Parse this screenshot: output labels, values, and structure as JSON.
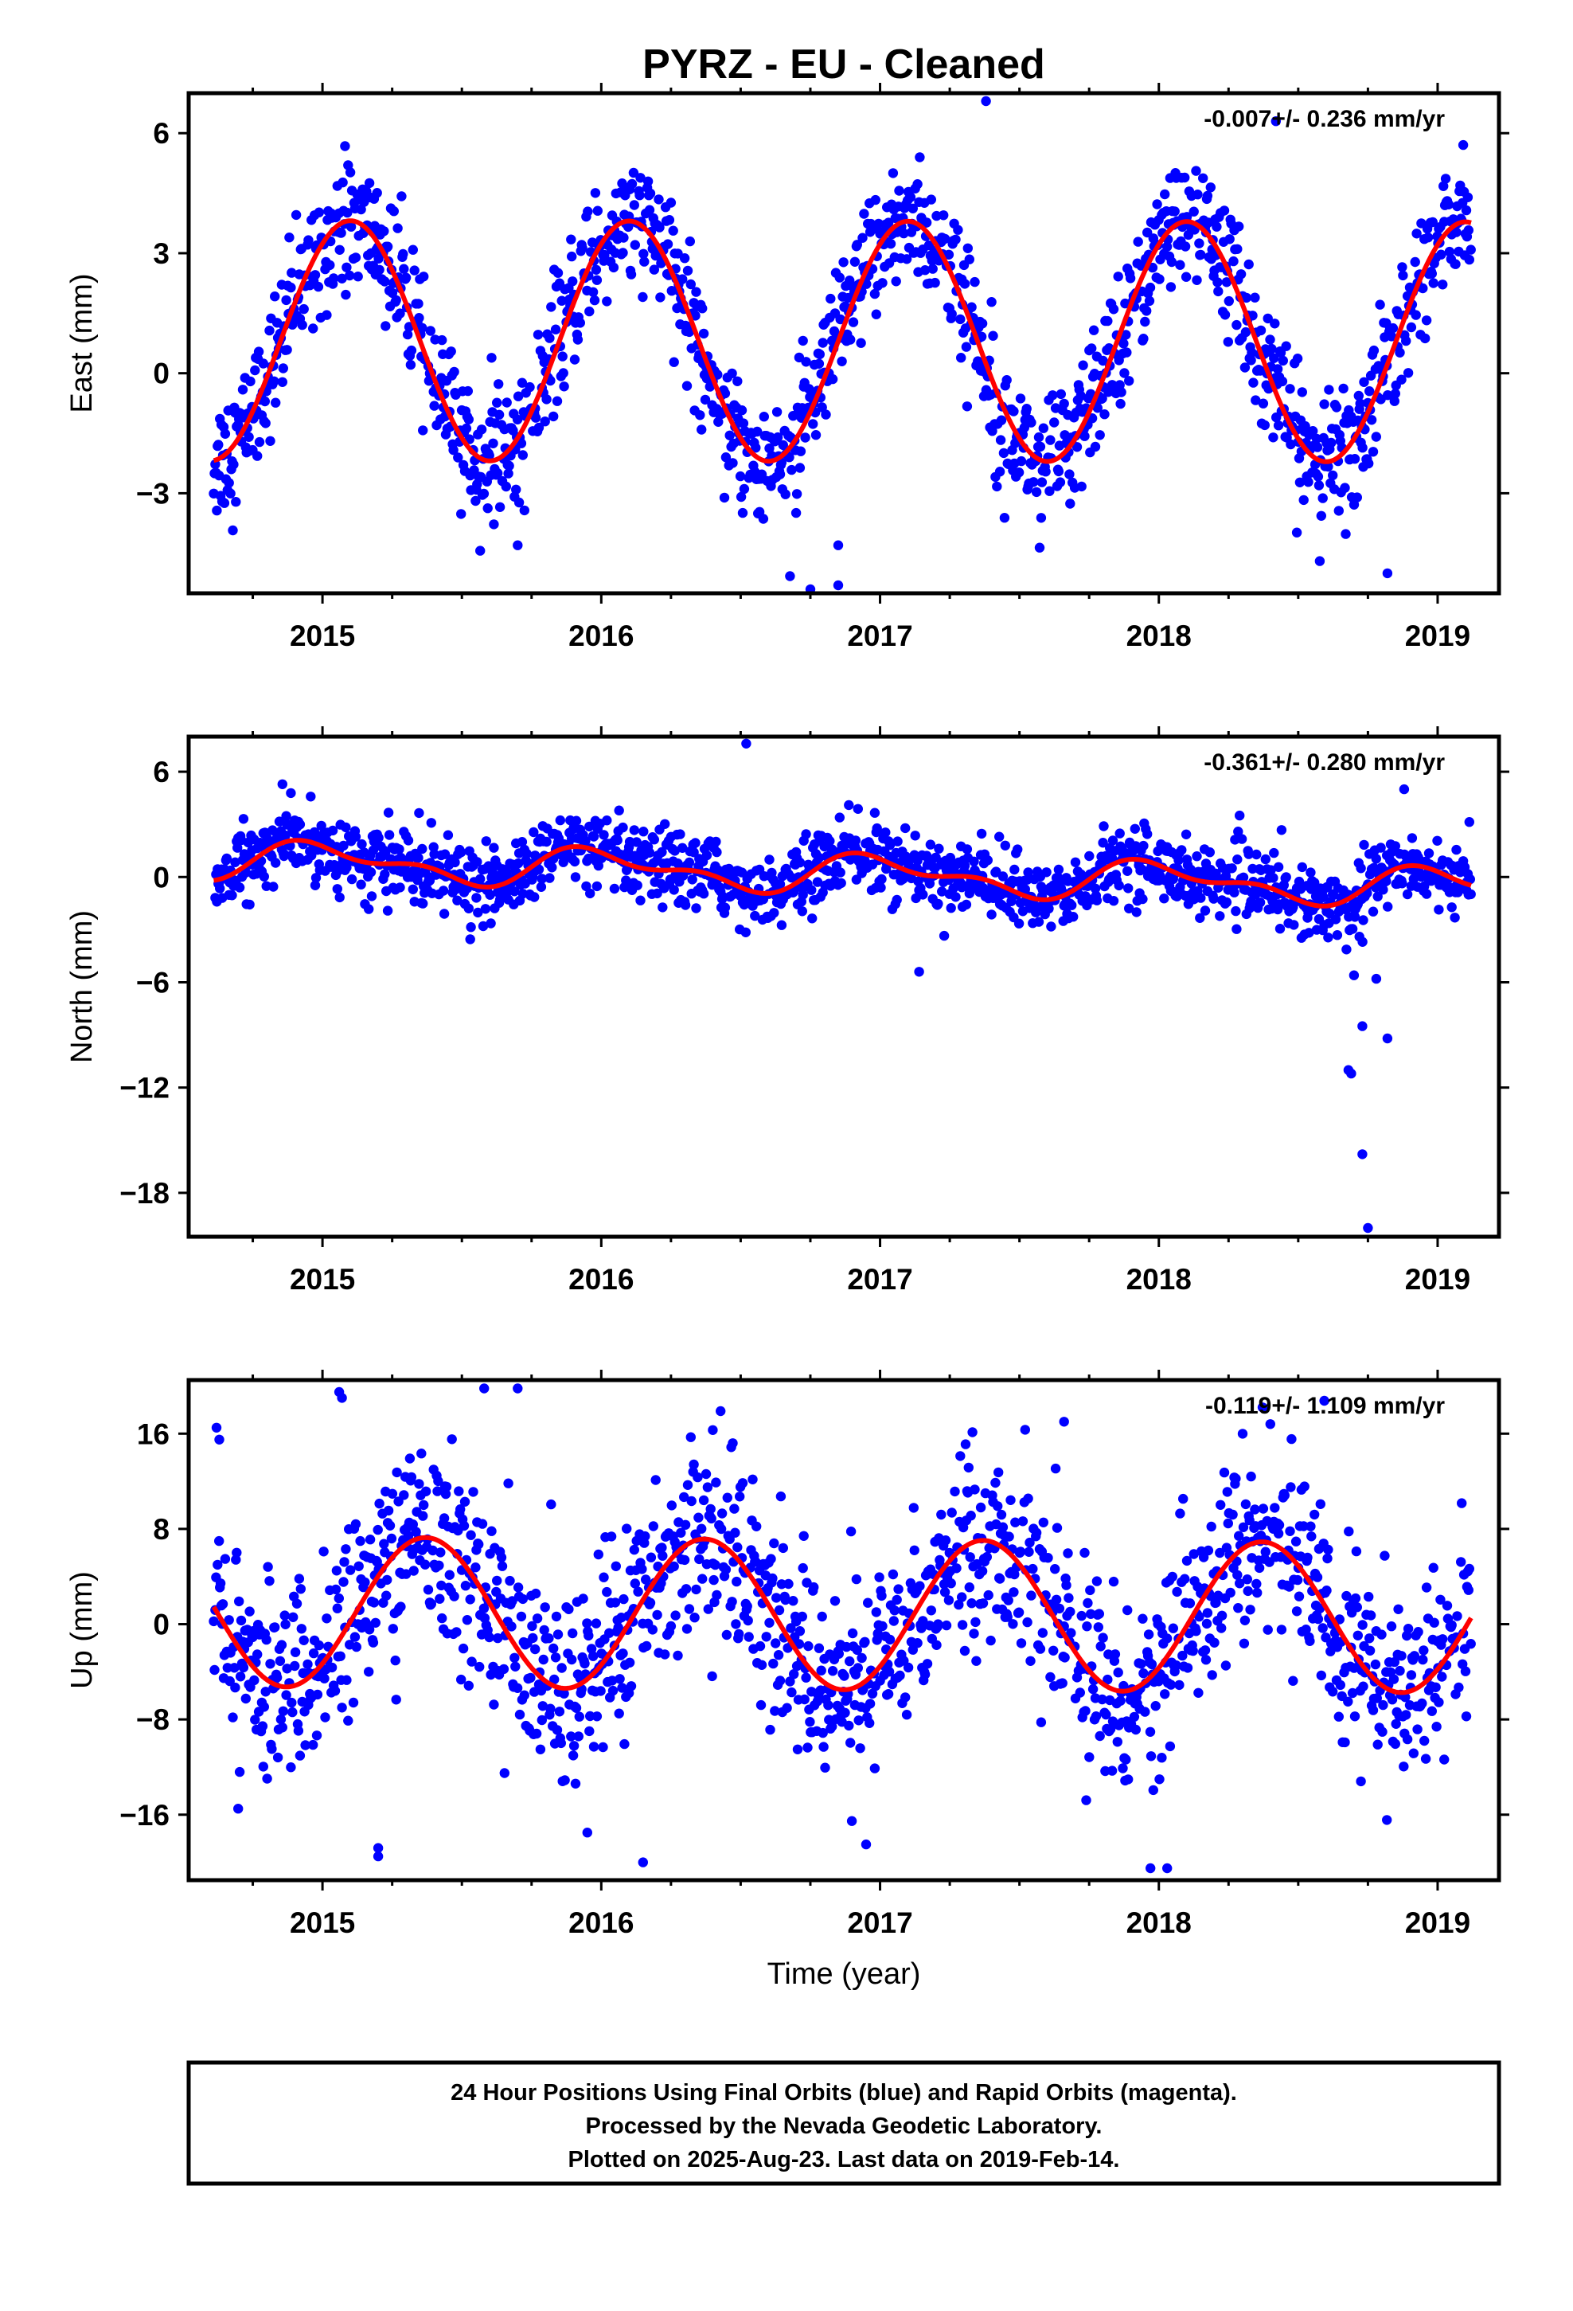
{
  "title": "PYRZ  - EU - Cleaned",
  "xlabel": "Time (year)",
  "footer": [
    "24 Hour Positions Using Final Orbits (blue) and Rapid Orbits (magenta).",
    "Processed by the Nevada Geodetic Laboratory.",
    "Plotted on 2025-Aug-23. Last data on 2019-Feb-14."
  ],
  "colors": {
    "points": "#0000ff",
    "fit": "#ff0000",
    "frame": "#000000"
  },
  "chart_data": [
    {
      "type": "scatter",
      "ylabel": "East (mm)",
      "rate_text": "-0.007+/- 0.236 mm/yr",
      "xlim": [
        2014.52,
        2019.22
      ],
      "ylim": [
        -5.5,
        7.0
      ],
      "xticks": [
        2015,
        2016,
        2017,
        2018,
        2019
      ],
      "yticks": [
        -3,
        0,
        3,
        6
      ],
      "model": {
        "mean": 0.8,
        "annual_amp": 3.0,
        "phase": -0.15,
        "semi_amp": 0.0,
        "trend": -0.007,
        "t0": 2016.8
      },
      "scatter": 0.8,
      "outliers": [
        [
          2016.75,
          -5.4
        ],
        [
          2016.85,
          -5.3
        ],
        [
          2017.38,
          6.8
        ],
        [
          2018.42,
          6.3
        ],
        [
          2018.82,
          -5.0
        ],
        [
          2016.85,
          -4.3
        ],
        [
          2015.7,
          -4.3
        ]
      ]
    },
    {
      "type": "scatter",
      "ylabel": "North (mm)",
      "rate_text": "-0.361+/- 0.280 mm/yr",
      "xlim": [
        2014.52,
        2019.22
      ],
      "ylim": [
        -20.5,
        8.0
      ],
      "xticks": [
        2015,
        2016,
        2017,
        2018,
        2019
      ],
      "yticks": [
        -18,
        -12,
        -6,
        0,
        6
      ],
      "model": {
        "mean": 0.2,
        "annual_amp": 0.9,
        "phase": -0.25,
        "semi_amp": 0.5,
        "trend": -0.361,
        "t0": 2016.8
      },
      "scatter": 1.0,
      "outliers": [
        [
          2016.52,
          7.6
        ],
        [
          2018.88,
          5.0
        ],
        [
          2018.7,
          -5.6
        ],
        [
          2018.73,
          -8.5
        ],
        [
          2018.68,
          -11.0
        ],
        [
          2018.69,
          -11.2
        ],
        [
          2018.82,
          -9.2
        ],
        [
          2018.73,
          -15.8
        ],
        [
          2018.75,
          -20.0
        ],
        [
          2018.78,
          -5.8
        ],
        [
          2017.14,
          -5.4
        ]
      ]
    },
    {
      "type": "scatter",
      "ylabel": "Up (mm)",
      "rate_text": "-0.119+/- 1.109 mm/yr",
      "xlim": [
        2014.52,
        2019.22
      ],
      "ylim": [
        -21.5,
        20.5
      ],
      "xticks": [
        2015,
        2016,
        2017,
        2018,
        2019
      ],
      "yticks": [
        -16,
        -8,
        0,
        8,
        16
      ],
      "model": {
        "mean": 0.8,
        "annual_amp": 6.3,
        "phase": 0.12,
        "semi_amp": 0.0,
        "trend": -0.119,
        "t0": 2016.8
      },
      "scatter": 4.0,
      "outliers": [
        [
          2015.07,
          19.0
        ],
        [
          2015.06,
          19.5
        ],
        [
          2015.58,
          19.8
        ],
        [
          2015.7,
          19.8
        ],
        [
          2014.62,
          16.5
        ],
        [
          2014.63,
          15.5
        ],
        [
          2016.4,
          16.3
        ],
        [
          2017.66,
          17.0
        ],
        [
          2018.4,
          16.8
        ],
        [
          2015.2,
          -19.5
        ],
        [
          2016.15,
          -20.0
        ],
        [
          2017.97,
          -20.5
        ],
        [
          2018.03,
          -20.5
        ],
        [
          2015.2,
          -18.8
        ],
        [
          2015.95,
          -17.5
        ],
        [
          2016.95,
          -18.5
        ]
      ]
    }
  ]
}
